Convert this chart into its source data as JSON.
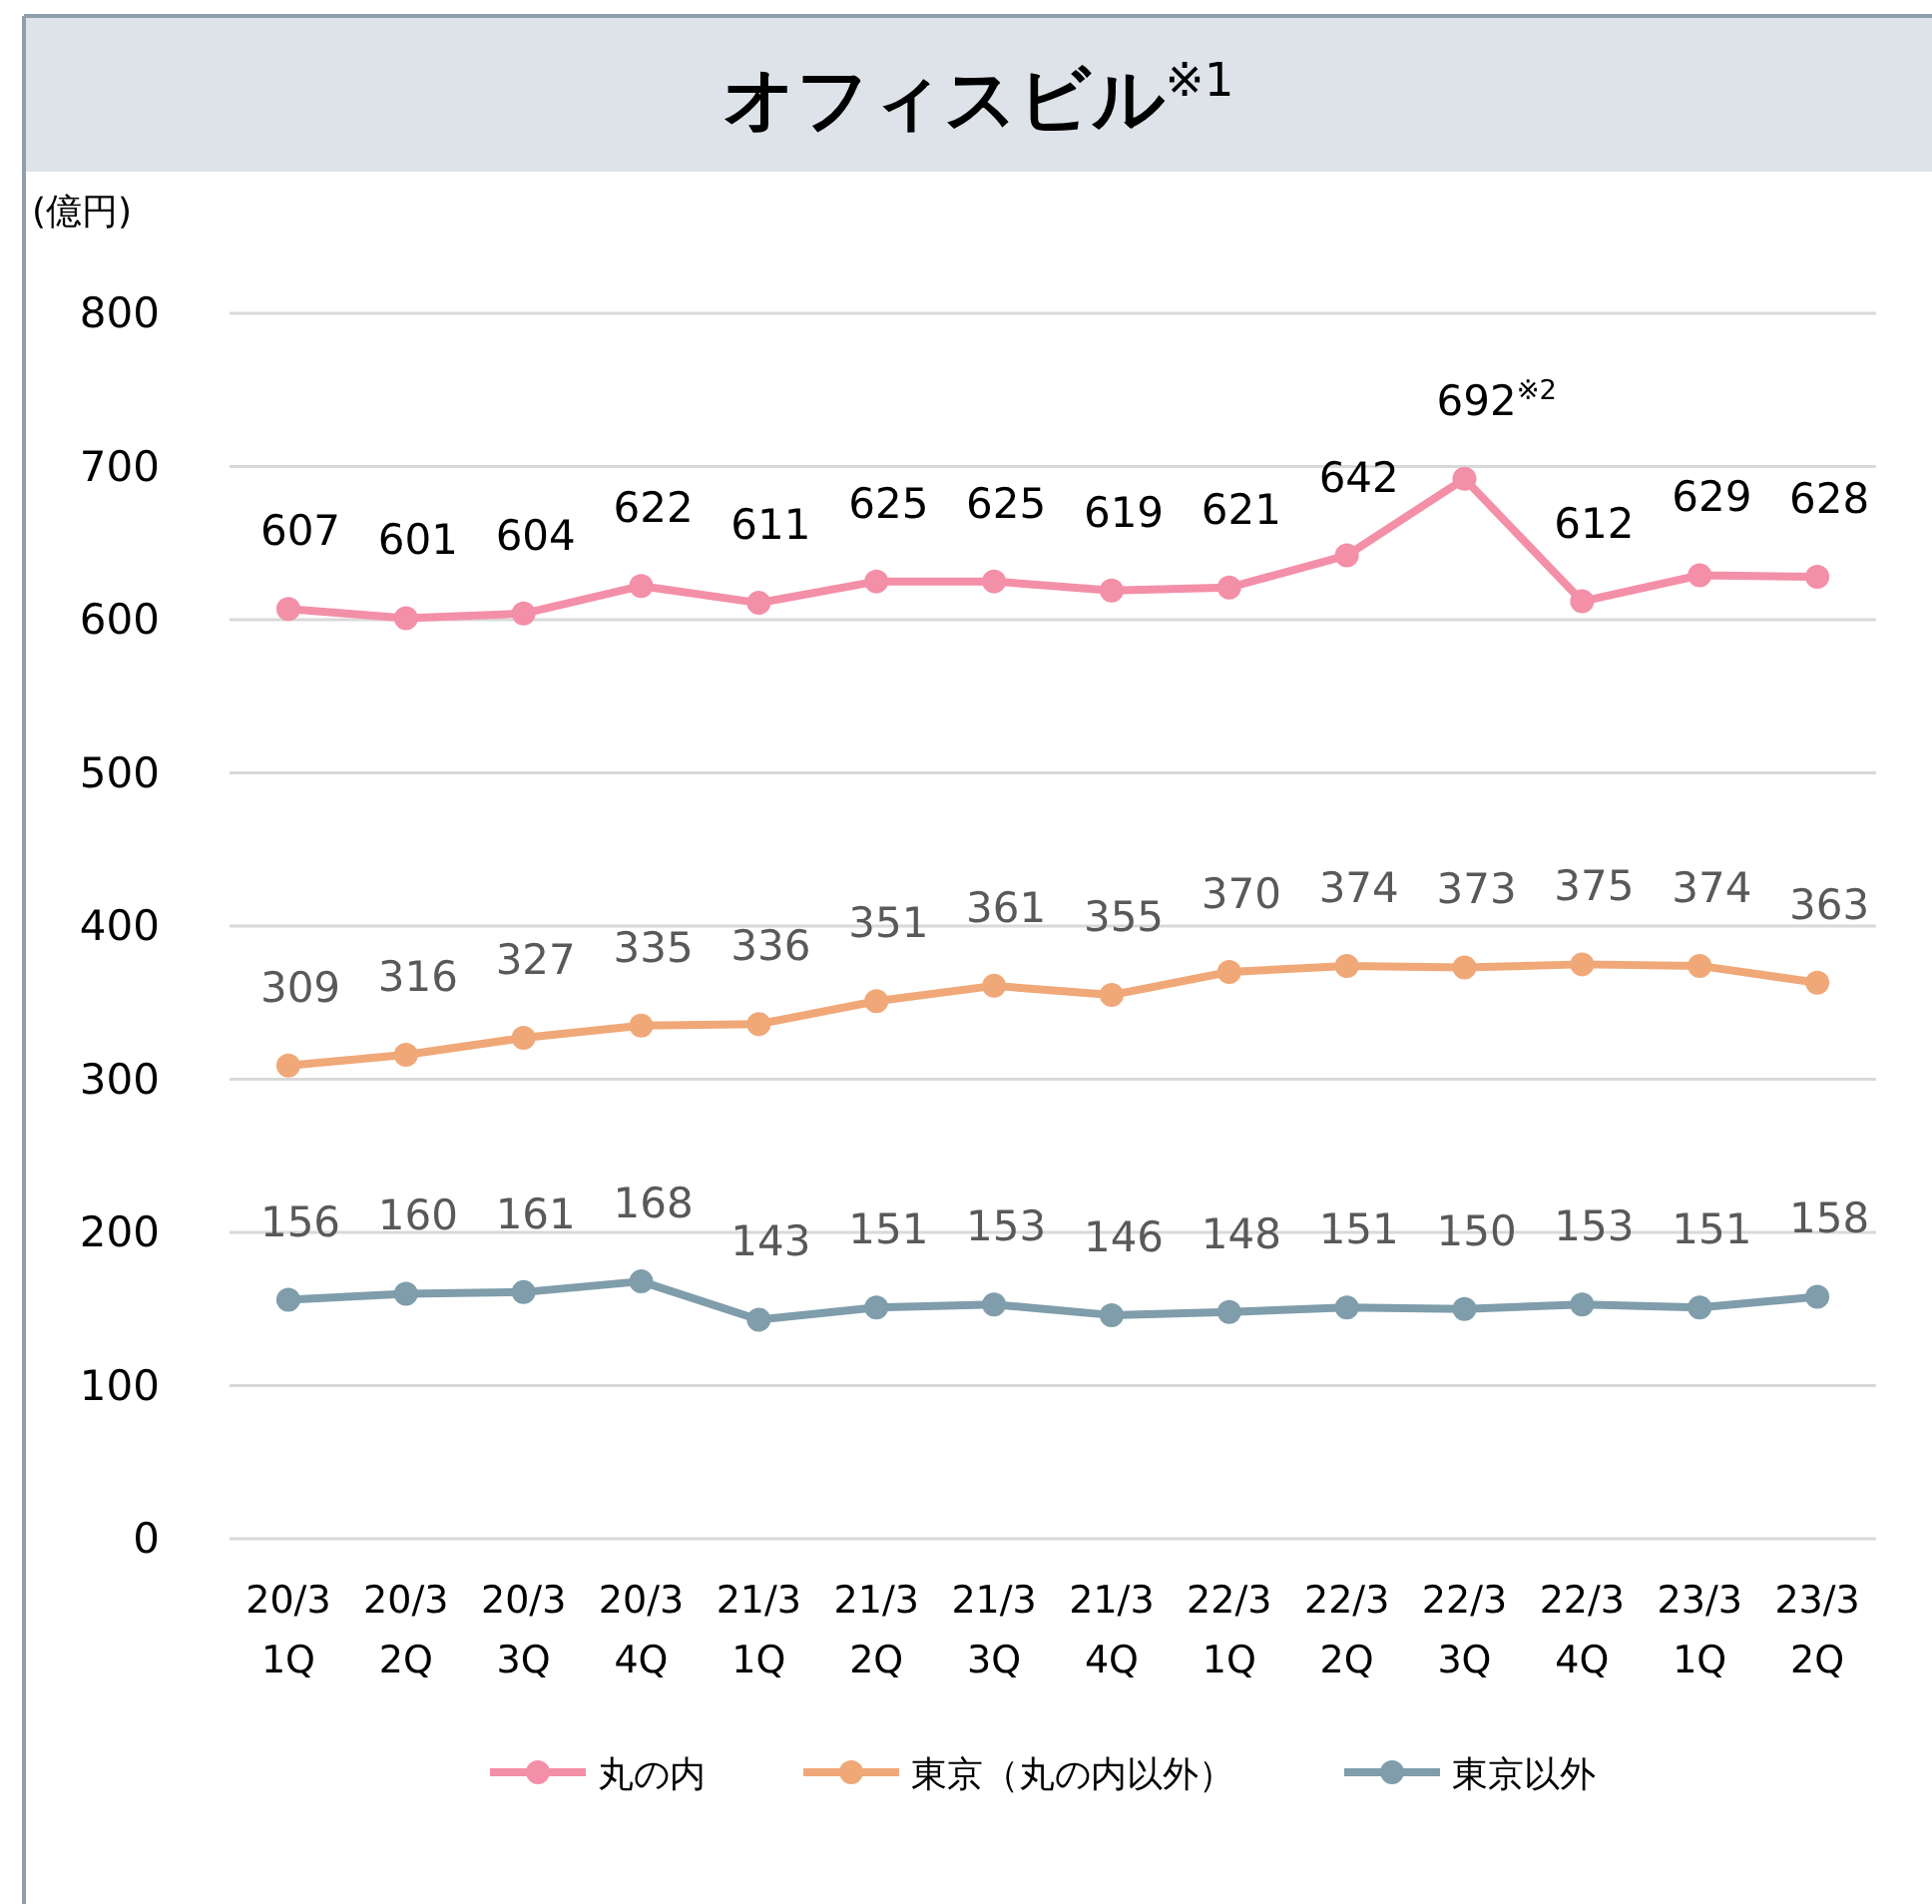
{
  "chart_data": {
    "type": "line",
    "title": "オフィスビル$^{※1}$",
    "ylabel": "(億円)",
    "categories": [
      "20/3\n1Q",
      "20/3\n2Q",
      "20/3\n3Q",
      "20/3\n4Q",
      "21/3\n1Q",
      "21/3\n2Q",
      "21/3\n3Q",
      "21/3\n4Q",
      "22/3\n1Q",
      "22/3\n2Q",
      "22/3\n3Q",
      "22/3\n4Q",
      "23/3\n1Q",
      "23/3\n2Q"
    ],
    "series": [
      {
        "name": "丸の内",
        "color": "#f48fa8",
        "values": [
          607,
          601,
          604,
          622,
          611,
          625,
          625,
          619,
          621,
          642,
          692,
          612,
          629,
          628
        ],
        "value_labels": [
          "607",
          "601",
          "604",
          "622",
          "611",
          "625",
          "625",
          "619",
          "621",
          "642",
          "692$^{※2}$",
          "612",
          "629",
          "628"
        ]
      },
      {
        "name": "東京（丸の内以外）",
        "color": "#f0a878",
        "values": [
          309,
          316,
          327,
          335,
          336,
          351,
          361,
          355,
          370,
          374,
          373,
          375,
          374,
          363
        ]
      },
      {
        "name": "東京以外",
        "color": "#7f9dab",
        "values": [
          156,
          160,
          161,
          168,
          143,
          151,
          153,
          146,
          148,
          151,
          150,
          153,
          151,
          158
        ]
      }
    ],
    "ylim": [
      0,
      800
    ],
    "yticks": [
      0,
      100,
      200,
      300,
      400,
      500,
      600,
      700,
      800
    ],
    "grid": "y",
    "legend": "bottom",
    "marker": "circle",
    "line_style": "solid",
    "data_labels": true
  }
}
